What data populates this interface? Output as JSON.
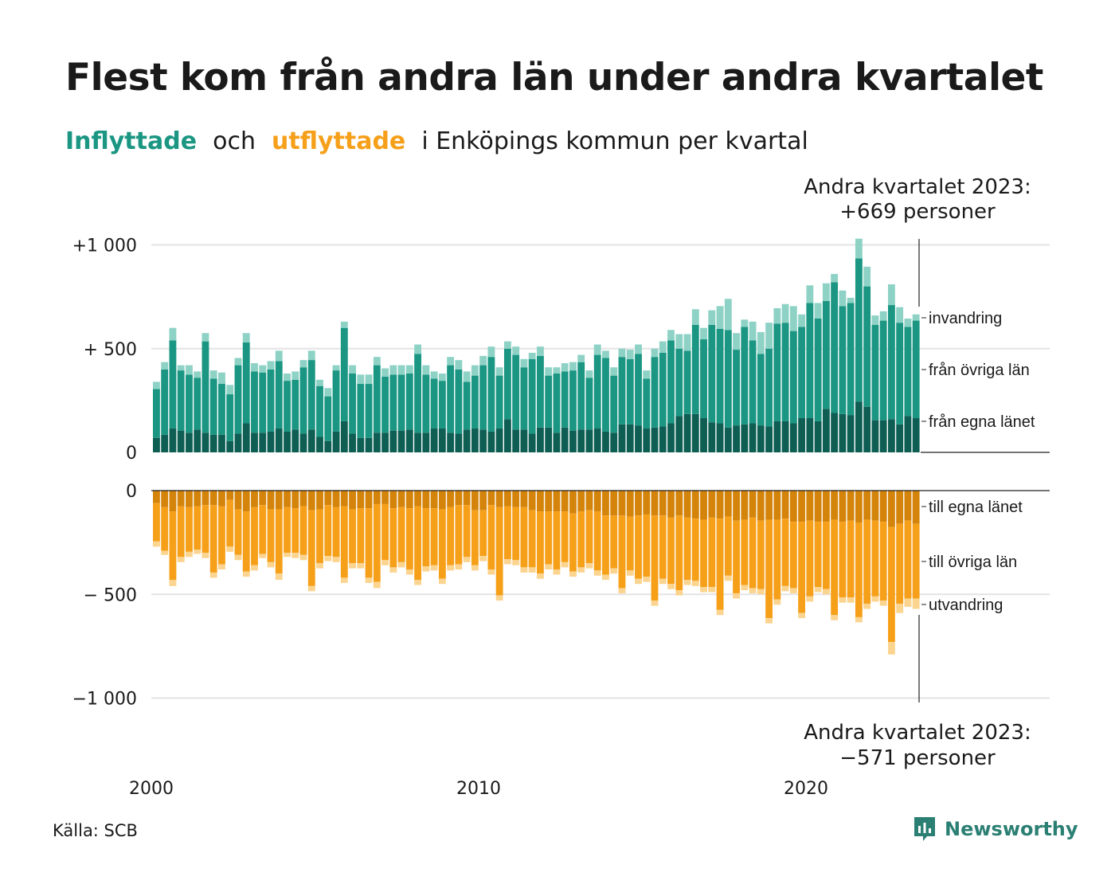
{
  "title": "Flest kom från andra län under andra kvartalet",
  "subtitle": {
    "in": "Inflyttade",
    "and": "och",
    "out": "utflyttade",
    "rest": "i Enköpings kommun per kvartal"
  },
  "source": "Källa: SCB",
  "logo_text": "Newsworthy",
  "colors": {
    "in_own_county": "#0e5e54",
    "in_other_counties": "#1a9683",
    "in_immigration": "#8ed2c6",
    "out_own_county": "#d4840b",
    "out_other_counties": "#f6a01a",
    "out_emigration": "#fbd48f",
    "grid": "#e3e3e3",
    "axis": "#222222"
  },
  "chart_data": {
    "type": "bar",
    "stacked": true,
    "title": "Flest kom från andra län under andra kvartalet",
    "subtitle": "Inflyttade och utflyttade i Enköpings kommun per kvartal",
    "x_ticks": [
      "2000",
      "2010",
      "2020"
    ],
    "x_range": [
      "2000 Q1",
      "2023 Q2"
    ],
    "in_axis": {
      "ylim": [
        0,
        1000
      ],
      "ticks": [
        0,
        500,
        1000
      ],
      "tick_labels": [
        "0",
        "+  500",
        "+1 000"
      ]
    },
    "out_axis": {
      "ylim": [
        -1000,
        0
      ],
      "ticks": [
        0,
        -500,
        -1000
      ],
      "tick_labels": [
        "0",
        "−  500",
        "−1 000"
      ]
    },
    "annotations": {
      "in_line1": "Andra kvartalet 2023:",
      "in_line2": "+669 personer",
      "out_line1": "Andra kvartalet 2023:",
      "out_line2": "−571 personer"
    },
    "series_labels": {
      "invandring": "invandring",
      "fran_ovriga_lan": "från övriga län",
      "fran_egna_lanet": "från egna länet",
      "till_egna_lanet": "till egna länet",
      "till_ovriga_lan": "till övriga län",
      "utvandring": "utvandring"
    },
    "quarters": [
      "2000 Q1",
      "2000 Q2",
      "2000 Q3",
      "2000 Q4",
      "2001 Q1",
      "2001 Q2",
      "2001 Q3",
      "2001 Q4",
      "2002 Q1",
      "2002 Q2",
      "2002 Q3",
      "2002 Q4",
      "2003 Q1",
      "2003 Q2",
      "2003 Q3",
      "2003 Q4",
      "2004 Q1",
      "2004 Q2",
      "2004 Q3",
      "2004 Q4",
      "2005 Q1",
      "2005 Q2",
      "2005 Q3",
      "2005 Q4",
      "2006 Q1",
      "2006 Q2",
      "2006 Q3",
      "2006 Q4",
      "2007 Q1",
      "2007 Q2",
      "2007 Q3",
      "2007 Q4",
      "2008 Q1",
      "2008 Q2",
      "2008 Q3",
      "2008 Q4",
      "2009 Q1",
      "2009 Q2",
      "2009 Q3",
      "2009 Q4",
      "2010 Q1",
      "2010 Q2",
      "2010 Q3",
      "2010 Q4",
      "2011 Q1",
      "2011 Q2",
      "2011 Q3",
      "2011 Q4",
      "2012 Q1",
      "2012 Q2",
      "2012 Q3",
      "2012 Q4",
      "2013 Q1",
      "2013 Q2",
      "2013 Q3",
      "2013 Q4",
      "2014 Q1",
      "2014 Q2",
      "2014 Q3",
      "2014 Q4",
      "2015 Q1",
      "2015 Q2",
      "2015 Q3",
      "2015 Q4",
      "2016 Q1",
      "2016 Q2",
      "2016 Q3",
      "2016 Q4",
      "2017 Q1",
      "2017 Q2",
      "2017 Q3",
      "2017 Q4",
      "2018 Q1",
      "2018 Q2",
      "2018 Q3",
      "2018 Q4",
      "2019 Q1",
      "2019 Q2",
      "2019 Q3",
      "2019 Q4",
      "2020 Q1",
      "2020 Q2",
      "2020 Q3",
      "2020 Q4",
      "2021 Q1",
      "2021 Q2",
      "2021 Q3",
      "2021 Q4",
      "2022 Q1",
      "2022 Q2",
      "2022 Q3",
      "2022 Q4",
      "2023 Q1",
      "2023 Q2"
    ],
    "inflow": {
      "own_county": [
        70,
        85,
        115,
        105,
        95,
        110,
        95,
        85,
        85,
        55,
        90,
        140,
        95,
        95,
        100,
        115,
        100,
        110,
        90,
        110,
        75,
        55,
        100,
        150,
        90,
        70,
        70,
        95,
        95,
        105,
        105,
        110,
        95,
        95,
        115,
        115,
        95,
        90,
        110,
        115,
        110,
        100,
        115,
        160,
        110,
        110,
        90,
        120,
        120,
        95,
        120,
        105,
        110,
        110,
        115,
        100,
        95,
        135,
        135,
        130,
        115,
        120,
        125,
        140,
        175,
        185,
        185,
        165,
        145,
        140,
        120,
        130,
        135,
        140,
        130,
        125,
        150,
        150,
        140,
        165,
        165,
        150,
        210,
        190,
        185,
        180,
        245,
        220,
        155,
        155,
        160,
        135,
        175,
        165
      ],
      "other_counties": [
        235,
        315,
        425,
        290,
        280,
        250,
        440,
        270,
        245,
        225,
        330,
        390,
        295,
        290,
        300,
        325,
        245,
        240,
        320,
        335,
        245,
        215,
        295,
        450,
        290,
        260,
        260,
        325,
        270,
        270,
        270,
        270,
        380,
        280,
        240,
        230,
        325,
        310,
        230,
        255,
        310,
        360,
        255,
        340,
        360,
        300,
        360,
        345,
        250,
        285,
        270,
        290,
        325,
        250,
        355,
        355,
        275,
        325,
        315,
        345,
        240,
        340,
        355,
        400,
        325,
        305,
        430,
        380,
        470,
        455,
        470,
        365,
        470,
        400,
        345,
        375,
        470,
        475,
        445,
        440,
        555,
        495,
        520,
        630,
        520,
        540,
        690,
        580,
        460,
        480,
        550,
        490,
        430,
        470
      ],
      "immigration": [
        35,
        35,
        60,
        25,
        45,
        30,
        40,
        40,
        55,
        45,
        35,
        45,
        40,
        35,
        40,
        50,
        35,
        40,
        35,
        45,
        30,
        40,
        25,
        30,
        40,
        45,
        45,
        40,
        40,
        45,
        45,
        40,
        45,
        45,
        35,
        35,
        40,
        45,
        50,
        50,
        45,
        50,
        40,
        35,
        40,
        40,
        30,
        45,
        40,
        30,
        40,
        40,
        35,
        35,
        50,
        35,
        40,
        40,
        45,
        45,
        40,
        40,
        55,
        50,
        70,
        80,
        75,
        55,
        70,
        110,
        150,
        80,
        35,
        90,
        105,
        125,
        75,
        90,
        120,
        60,
        85,
        75,
        85,
        40,
        75,
        25,
        95,
        95,
        45,
        45,
        100,
        75,
        40,
        30
      ]
    },
    "outflow": {
      "own_county": [
        -60,
        -80,
        -100,
        -75,
        -80,
        -75,
        -70,
        -70,
        -75,
        -45,
        -90,
        -100,
        -80,
        -70,
        -90,
        -90,
        -80,
        -85,
        -75,
        -95,
        -90,
        -70,
        -80,
        -75,
        -90,
        -85,
        -85,
        -65,
        -65,
        -85,
        -80,
        -85,
        -75,
        -85,
        -85,
        -90,
        -80,
        -70,
        -70,
        -95,
        -95,
        -70,
        -80,
        -75,
        -80,
        -80,
        -95,
        -100,
        -100,
        -100,
        -100,
        -110,
        -100,
        -95,
        -100,
        -120,
        -120,
        -120,
        -125,
        -120,
        -115,
        -120,
        -120,
        -130,
        -120,
        -130,
        -135,
        -140,
        -130,
        -135,
        -125,
        -145,
        -140,
        -130,
        -145,
        -140,
        -140,
        -135,
        -150,
        -150,
        -145,
        -150,
        -150,
        -140,
        -150,
        -145,
        -155,
        -140,
        -145,
        -150,
        -175,
        -160,
        -145,
        -160
      ],
      "other_counties": [
        -185,
        -210,
        -330,
        -245,
        -215,
        -210,
        -230,
        -325,
        -280,
        -225,
        -220,
        -290,
        -280,
        -235,
        -255,
        -310,
        -220,
        -215,
        -235,
        -365,
        -260,
        -245,
        -240,
        -345,
        -260,
        -265,
        -335,
        -375,
        -270,
        -285,
        -265,
        -295,
        -355,
        -280,
        -275,
        -335,
        -280,
        -285,
        -250,
        -265,
        -220,
        -310,
        -425,
        -255,
        -255,
        -290,
        -275,
        -300,
        -255,
        -280,
        -245,
        -280,
        -270,
        -255,
        -285,
        -285,
        -255,
        -350,
        -260,
        -305,
        -300,
        -410,
        -305,
        -320,
        -360,
        -300,
        -300,
        -325,
        -335,
        -440,
        -285,
        -350,
        -315,
        -340,
        -330,
        -475,
        -385,
        -325,
        -320,
        -440,
        -365,
        -315,
        -325,
        -460,
        -365,
        -370,
        -455,
        -405,
        -365,
        -380,
        -555,
        -385,
        -375,
        -360
      ],
      "emigration": [
        -25,
        -20,
        -30,
        -25,
        -25,
        -20,
        -25,
        -25,
        -25,
        -25,
        -25,
        -25,
        -25,
        -20,
        -25,
        -30,
        -20,
        -25,
        -25,
        -25,
        -25,
        -25,
        -25,
        -25,
        -25,
        -25,
        -25,
        -30,
        -25,
        -25,
        -25,
        -25,
        -25,
        -25,
        -25,
        -25,
        -25,
        -25,
        -25,
        -25,
        -25,
        -25,
        -25,
        -25,
        -25,
        -25,
        -25,
        -25,
        -25,
        -25,
        -25,
        -25,
        -25,
        -25,
        -25,
        -25,
        -25,
        -25,
        -25,
        -25,
        -25,
        -25,
        -25,
        -25,
        -25,
        -25,
        -25,
        -25,
        -25,
        -25,
        -25,
        -25,
        -25,
        -25,
        -25,
        -25,
        -25,
        -25,
        -25,
        -25,
        -25,
        -25,
        -25,
        -25,
        -25,
        -25,
        -25,
        -25,
        -25,
        -25,
        -60,
        -45,
        -40,
        -50
      ]
    }
  }
}
